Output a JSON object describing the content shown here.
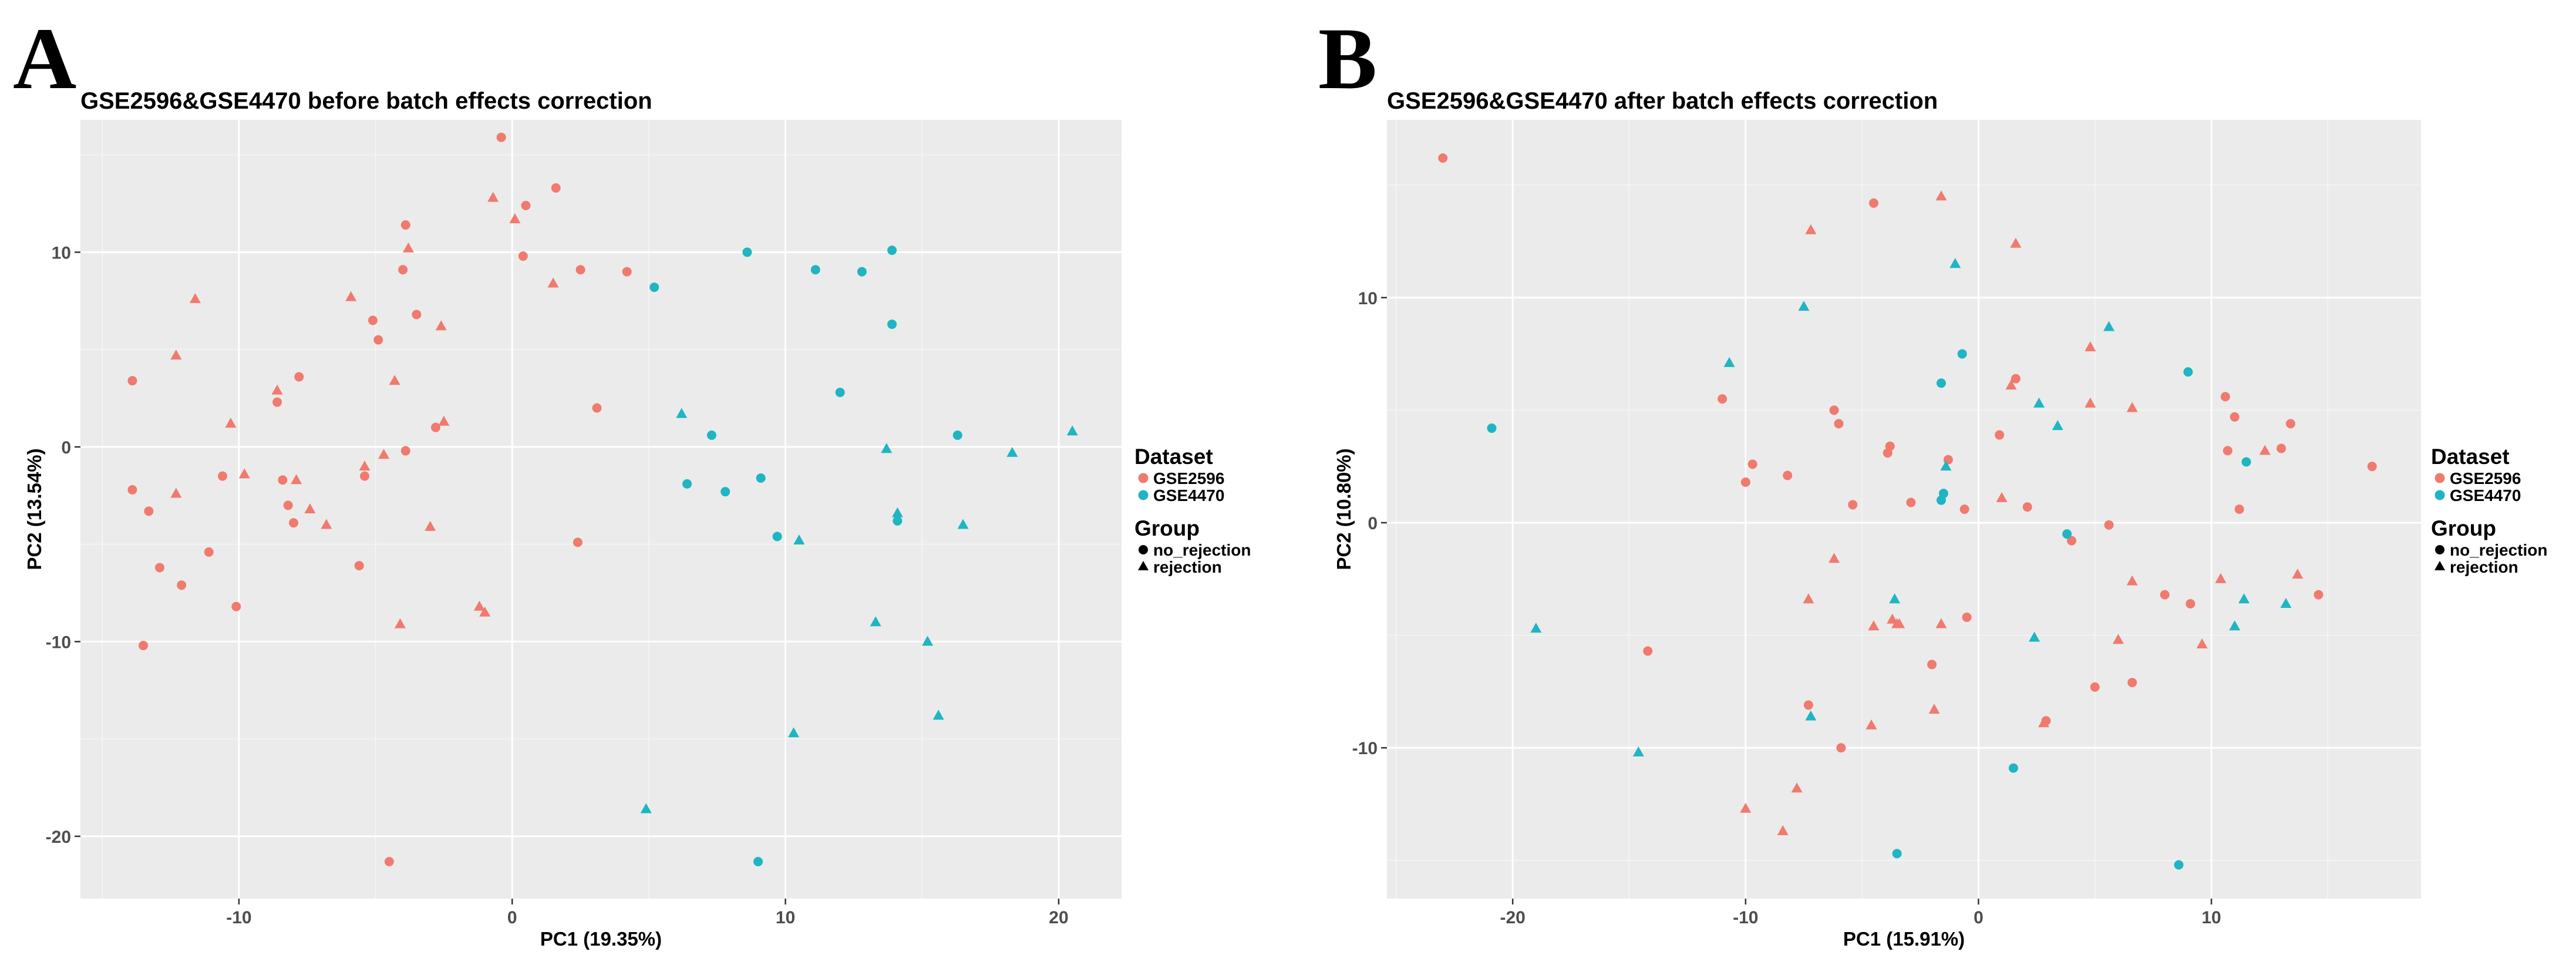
{
  "figure": {
    "panels": [
      "A",
      "B"
    ]
  },
  "colors": {
    "GSE2596": "#f07a6e",
    "GSE4470": "#1fb5c2",
    "legend_point": "#000000"
  },
  "chart_data": [
    {
      "type": "scatter",
      "panel": "A",
      "title": "GSE2596&GSE4470 before batch effects correction",
      "xlabel": "PC1 (19.35%)",
      "ylabel": "PC2 (13.54%)",
      "xlim": [
        -15.8,
        22.3
      ],
      "ylim": [
        -23.2,
        16.8
      ],
      "xticks": [
        -10,
        0,
        10,
        20
      ],
      "yticks": [
        -20,
        -10,
        0,
        10
      ],
      "grid": true,
      "legend_position": "right",
      "legend": {
        "color_title": "Dataset",
        "color_entries": [
          "GSE2596",
          "GSE4470"
        ],
        "shape_title": "Group",
        "shape_entries": [
          "no_rejection",
          "rejection"
        ]
      },
      "series": [
        {
          "dataset": "GSE2596",
          "group": "no_rejection",
          "points": [
            [
              -13.9,
              3.4
            ],
            [
              -13.9,
              -2.2
            ],
            [
              -13.3,
              -3.3
            ],
            [
              -13.5,
              -10.2
            ],
            [
              -12.9,
              -6.2
            ],
            [
              -12.1,
              -7.1
            ],
            [
              -11.1,
              -5.4
            ],
            [
              -10.6,
              -1.5
            ],
            [
              -10.1,
              -8.2
            ],
            [
              -8.6,
              2.3
            ],
            [
              -8.4,
              -1.7
            ],
            [
              -8.2,
              -3.0
            ],
            [
              -8.0,
              -3.9
            ],
            [
              -7.8,
              3.6
            ],
            [
              -5.6,
              -6.1
            ],
            [
              -5.4,
              -1.5
            ],
            [
              -5.1,
              6.5
            ],
            [
              -4.9,
              5.5
            ],
            [
              -4.5,
              -21.3
            ],
            [
              -4.0,
              9.1
            ],
            [
              -3.9,
              11.4
            ],
            [
              -3.9,
              -0.2
            ],
            [
              -3.5,
              6.8
            ],
            [
              -2.8,
              1.0
            ],
            [
              -0.4,
              15.9
            ],
            [
              0.4,
              9.8
            ],
            [
              0.5,
              12.4
            ],
            [
              1.6,
              13.3
            ],
            [
              2.4,
              -4.9
            ],
            [
              2.5,
              9.1
            ],
            [
              3.1,
              2.0
            ],
            [
              4.2,
              9.0
            ]
          ]
        },
        {
          "dataset": "GSE2596",
          "group": "rejection",
          "points": [
            [
              -12.3,
              -2.4
            ],
            [
              -12.3,
              4.7
            ],
            [
              -11.6,
              7.6
            ],
            [
              -10.3,
              1.2
            ],
            [
              -9.8,
              -1.4
            ],
            [
              -8.6,
              2.9
            ],
            [
              -7.9,
              -1.7
            ],
            [
              -7.4,
              -3.2
            ],
            [
              -6.8,
              -4.0
            ],
            [
              -5.9,
              7.7
            ],
            [
              -5.4,
              -1.0
            ],
            [
              -4.7,
              -0.4
            ],
            [
              -4.3,
              3.4
            ],
            [
              -4.1,
              -9.1
            ],
            [
              -3.8,
              10.2
            ],
            [
              -3.0,
              -4.1
            ],
            [
              -2.6,
              6.2
            ],
            [
              -2.5,
              1.3
            ],
            [
              -1.2,
              -8.2
            ],
            [
              -1.0,
              -8.5
            ],
            [
              -0.7,
              12.8
            ],
            [
              0.1,
              11.7
            ],
            [
              1.5,
              8.4
            ]
          ]
        },
        {
          "dataset": "GSE4470",
          "group": "no_rejection",
          "points": [
            [
              5.2,
              8.2
            ],
            [
              6.4,
              -1.9
            ],
            [
              7.3,
              0.6
            ],
            [
              7.8,
              -2.3
            ],
            [
              8.6,
              10.0
            ],
            [
              9.0,
              -21.3
            ],
            [
              9.1,
              -1.6
            ],
            [
              9.7,
              -4.6
            ],
            [
              11.1,
              9.1
            ],
            [
              12.0,
              2.8
            ],
            [
              12.8,
              9.0
            ],
            [
              13.9,
              10.1
            ],
            [
              13.9,
              6.3
            ],
            [
              14.1,
              -3.8
            ],
            [
              16.3,
              0.6
            ]
          ]
        },
        {
          "dataset": "GSE4470",
          "group": "rejection",
          "points": [
            [
              4.9,
              -18.6
            ],
            [
              6.2,
              1.7
            ],
            [
              10.3,
              -14.7
            ],
            [
              10.5,
              -4.8
            ],
            [
              13.3,
              -9.0
            ],
            [
              13.7,
              -0.1
            ],
            [
              14.1,
              -3.4
            ],
            [
              15.2,
              -10.0
            ],
            [
              15.6,
              -13.8
            ],
            [
              16.5,
              -4.0
            ],
            [
              18.3,
              -0.3
            ],
            [
              20.5,
              0.8
            ]
          ]
        }
      ]
    },
    {
      "type": "scatter",
      "panel": "B",
      "title": "GSE2596&GSE4470 after batch effects correction",
      "xlabel": "PC1 (15.91%)",
      "ylabel": "PC2 (10.80%)",
      "xlim": [
        -25.4,
        19.0
      ],
      "ylim": [
        -16.7,
        17.9
      ],
      "xticks": [
        -20,
        -10,
        0,
        10
      ],
      "yticks": [
        -10,
        0,
        10
      ],
      "grid": true,
      "legend_position": "right",
      "legend": {
        "color_title": "Dataset",
        "color_entries": [
          "GSE2596",
          "GSE4470"
        ],
        "shape_title": "Group",
        "shape_entries": [
          "no_rejection",
          "rejection"
        ]
      },
      "series": [
        {
          "dataset": "GSE2596",
          "group": "no_rejection",
          "points": [
            [
              -23.0,
              16.2
            ],
            [
              -14.2,
              -5.7
            ],
            [
              -11.0,
              5.5
            ],
            [
              -10.0,
              1.8
            ],
            [
              -9.7,
              2.6
            ],
            [
              -8.2,
              2.1
            ],
            [
              -7.3,
              -8.1
            ],
            [
              -6.2,
              5.0
            ],
            [
              -6.0,
              4.4
            ],
            [
              -5.9,
              -10.0
            ],
            [
              -5.4,
              0.8
            ],
            [
              -4.5,
              14.2
            ],
            [
              -3.9,
              3.1
            ],
            [
              -3.8,
              3.4
            ],
            [
              -2.9,
              0.9
            ],
            [
              -2.0,
              -6.3
            ],
            [
              -1.3,
              2.8
            ],
            [
              -0.6,
              0.6
            ],
            [
              -0.5,
              -4.2
            ],
            [
              0.9,
              3.9
            ],
            [
              1.6,
              6.4
            ],
            [
              2.1,
              0.7
            ],
            [
              2.9,
              -8.8
            ],
            [
              4.0,
              -0.8
            ],
            [
              5.0,
              -7.3
            ],
            [
              5.6,
              -0.1
            ],
            [
              6.6,
              -7.1
            ],
            [
              8.0,
              -3.2
            ],
            [
              9.1,
              -3.6
            ],
            [
              10.6,
              5.6
            ],
            [
              10.7,
              3.2
            ],
            [
              11.0,
              4.7
            ],
            [
              11.2,
              0.6
            ],
            [
              13.0,
              3.3
            ],
            [
              13.4,
              4.4
            ],
            [
              14.6,
              -3.2
            ],
            [
              16.9,
              2.5
            ]
          ]
        },
        {
          "dataset": "GSE2596",
          "group": "rejection",
          "points": [
            [
              -10.0,
              -12.7
            ],
            [
              -8.4,
              -13.7
            ],
            [
              -7.8,
              -11.8
            ],
            [
              -7.3,
              -3.4
            ],
            [
              -7.2,
              13.0
            ],
            [
              -6.2,
              -1.6
            ],
            [
              -4.6,
              -9.0
            ],
            [
              -4.5,
              -4.6
            ],
            [
              -3.7,
              -4.3
            ],
            [
              -3.5,
              -4.5
            ],
            [
              -3.4,
              -4.5
            ],
            [
              -1.9,
              -8.3
            ],
            [
              -1.6,
              14.5
            ],
            [
              -1.6,
              -4.5
            ],
            [
              1.0,
              1.1
            ],
            [
              1.4,
              6.1
            ],
            [
              1.6,
              12.4
            ],
            [
              2.8,
              -8.9
            ],
            [
              4.8,
              5.3
            ],
            [
              4.8,
              7.8
            ],
            [
              6.0,
              -5.2
            ],
            [
              6.6,
              -2.6
            ],
            [
              6.6,
              5.1
            ],
            [
              9.6,
              -5.4
            ],
            [
              10.4,
              -2.5
            ],
            [
              12.3,
              3.2
            ],
            [
              13.7,
              -2.3
            ]
          ]
        },
        {
          "dataset": "GSE4470",
          "group": "no_rejection",
          "points": [
            [
              -20.9,
              4.2
            ],
            [
              -3.5,
              -14.7
            ],
            [
              -1.6,
              6.2
            ],
            [
              -1.6,
              1.0
            ],
            [
              -1.5,
              1.3
            ],
            [
              -0.7,
              7.5
            ],
            [
              1.5,
              -10.9
            ],
            [
              3.8,
              -0.5
            ],
            [
              8.6,
              -15.2
            ],
            [
              9.0,
              6.7
            ],
            [
              11.5,
              2.7
            ]
          ]
        },
        {
          "dataset": "GSE4470",
          "group": "rejection",
          "points": [
            [
              -19.0,
              -4.7
            ],
            [
              -14.6,
              -10.2
            ],
            [
              -10.7,
              7.1
            ],
            [
              -7.5,
              9.6
            ],
            [
              -7.2,
              -8.6
            ],
            [
              -3.6,
              -3.4
            ],
            [
              -1.4,
              2.5
            ],
            [
              -1.0,
              11.5
            ],
            [
              2.4,
              -5.1
            ],
            [
              2.6,
              5.3
            ],
            [
              3.4,
              4.3
            ],
            [
              5.6,
              8.7
            ],
            [
              11.0,
              -4.6
            ],
            [
              11.4,
              -3.4
            ],
            [
              13.2,
              -3.6
            ]
          ]
        }
      ]
    }
  ]
}
